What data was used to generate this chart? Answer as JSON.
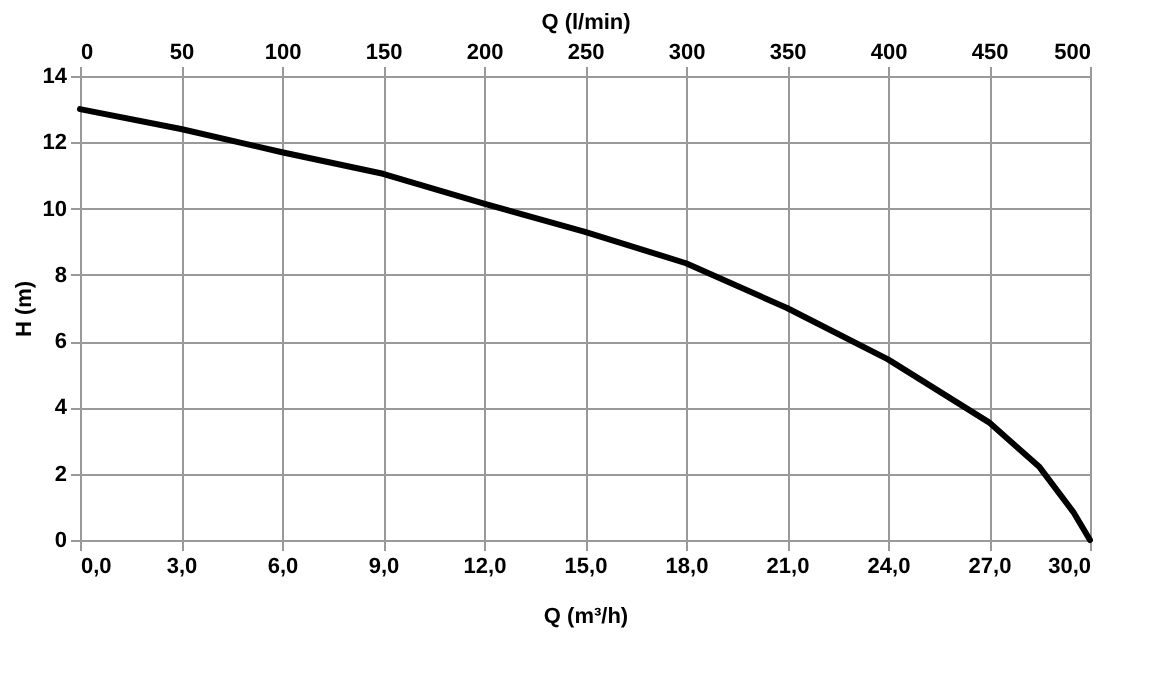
{
  "chart_data": {
    "type": "line",
    "xlabel": "Q (m³/h)",
    "ylabel": "H (m)",
    "x2label": "Q (l/min)",
    "x": [
      0,
      3,
      6,
      9,
      12,
      15,
      18,
      21,
      24,
      27,
      28.5,
      29.5,
      30
    ],
    "series": [
      {
        "color": "#000000",
        "values": [
          13.0,
          12.4,
          11.7,
          11.05,
          10.15,
          9.3,
          8.35,
          7.0,
          5.45,
          3.55,
          2.2,
          0.85,
          0
        ]
      }
    ],
    "xlim": [
      0,
      30
    ],
    "xticks": [
      {
        "value": 0,
        "label": "0,0"
      },
      {
        "value": 3,
        "label": "3,0"
      },
      {
        "value": 6,
        "label": "6,0"
      },
      {
        "value": 9,
        "label": "9,0"
      },
      {
        "value": 12,
        "label": "12,0"
      },
      {
        "value": 15,
        "label": "15,0"
      },
      {
        "value": 18,
        "label": "18,0"
      },
      {
        "value": 21,
        "label": "21,0"
      },
      {
        "value": 24,
        "label": "24,0"
      },
      {
        "value": 27,
        "label": "27,0"
      },
      {
        "value": 30,
        "label": "30,0"
      }
    ],
    "x2lim": [
      0,
      500
    ],
    "x2ticks": [
      0,
      50,
      100,
      150,
      200,
      250,
      300,
      350,
      400,
      450,
      500
    ],
    "ylim": [
      0,
      14
    ],
    "yticks": [
      0,
      2,
      4,
      6,
      8,
      10,
      12,
      14
    ],
    "grid": true,
    "marker": "none",
    "line_style": "solid",
    "legend": false
  }
}
